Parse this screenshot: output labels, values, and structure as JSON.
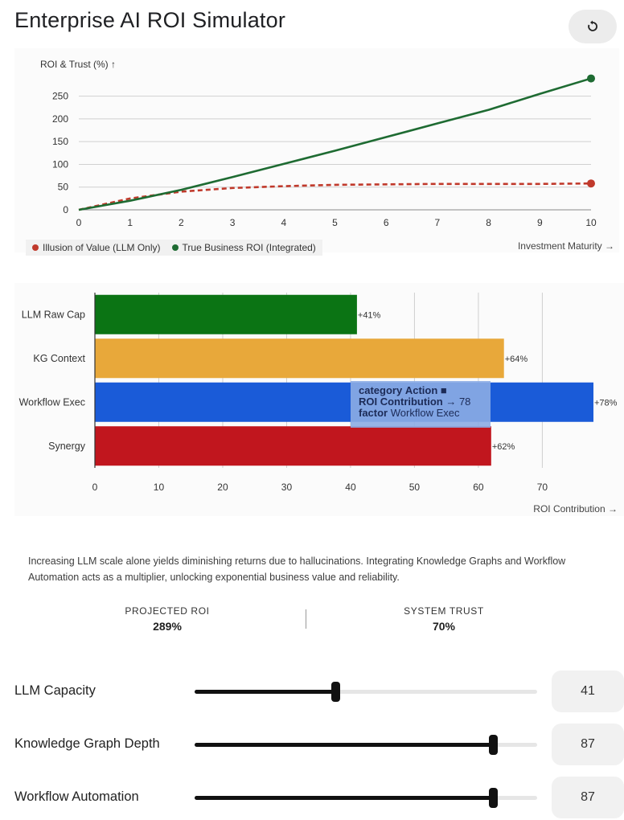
{
  "app": {
    "title": "Enterprise AI ROI Simulator",
    "reset_icon": "reset-icon"
  },
  "line_chart": {
    "ylabel": "ROI & Trust (%) ↑",
    "xlabel": "Investment Maturity →",
    "legend": [
      {
        "label": "Illusion of Value (LLM Only)",
        "color": "#c0392b"
      },
      {
        "label": "True Business ROI (Integrated)",
        "color": "#1e6b32"
      }
    ]
  },
  "bar_chart": {
    "xlabel": "ROI Contribution →",
    "tooltip": {
      "category_key": "category",
      "category_value": "Action ■",
      "roi_key": "ROI Contribution",
      "roi_value": "→ 78",
      "factor_key": "factor",
      "factor_value": "Workflow Exec"
    }
  },
  "chart_data": [
    {
      "type": "line",
      "xlabel": "Investment Maturity →",
      "ylabel": "ROI & Trust (%) ↑",
      "x": [
        0,
        1,
        2,
        3,
        4,
        5,
        6,
        7,
        8,
        9,
        10
      ],
      "xlim": [
        0,
        10
      ],
      "ylim": [
        0,
        290
      ],
      "yticks": [
        0,
        50,
        100,
        150,
        200,
        250
      ],
      "grid": true,
      "legend_position": "bottom-left",
      "series": [
        {
          "name": "Illusion of Value (LLM Only)",
          "color": "#c0392b",
          "style": "dashed",
          "values": [
            0,
            25,
            40,
            48,
            52,
            55,
            56,
            57,
            57,
            57,
            58
          ]
        },
        {
          "name": "True Business ROI (Integrated)",
          "color": "#1e6b32",
          "style": "solid",
          "values": [
            0,
            20,
            44,
            72,
            101,
            130,
            160,
            190,
            220,
            255,
            289
          ]
        }
      ]
    },
    {
      "type": "bar",
      "orientation": "horizontal",
      "xlabel": "ROI Contribution →",
      "categories": [
        "LLM Raw Cap",
        "KG Context",
        "Workflow Exec",
        "Synergy"
      ],
      "values": [
        41,
        64,
        78,
        62
      ],
      "labels": [
        "+41%",
        "+64%",
        "+78%",
        "+62%"
      ],
      "colors": [
        "#0b7414",
        "#e8a83a",
        "#1a5bd8",
        "#c1161e"
      ],
      "xticks": [
        0,
        10,
        20,
        30,
        40,
        50,
        60,
        70
      ],
      "xlim": [
        0,
        78
      ],
      "grid": true
    }
  ],
  "summary": {
    "description": "Increasing LLM scale alone yields diminishing returns due to hallucinations. Integrating Knowledge Graphs and Workflow Automation acts as a multiplier, unlocking exponential business value and reliability.",
    "projected_roi_label": "PROJECTED ROI",
    "projected_roi_value": "289%",
    "system_trust_label": "SYSTEM TRUST",
    "system_trust_value": "70%"
  },
  "sliders": [
    {
      "label": "LLM Capacity",
      "value": "41",
      "fraction": 0.41
    },
    {
      "label": "Knowledge Graph Depth",
      "value": "87",
      "fraction": 0.87
    },
    {
      "label": "Workflow Automation",
      "value": "87",
      "fraction": 0.87
    }
  ]
}
